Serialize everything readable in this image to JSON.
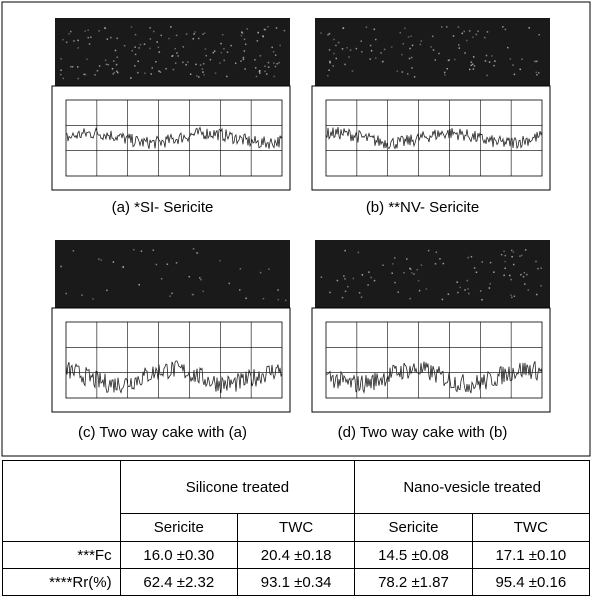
{
  "panels": [
    {
      "caption": "(a) *SI- Sericite"
    },
    {
      "caption": "(b) **NV- Sericite"
    },
    {
      "caption": "(c) Two way cake with (a)"
    },
    {
      "caption": "(d) Two way cake with (b)"
    }
  ],
  "table": {
    "header": [
      "Silicone treated",
      "Nano-vesicle treated"
    ],
    "subheader": [
      "Sericite",
      "TWC",
      "Sericite",
      "TWC"
    ],
    "rows": [
      [
        "***Fc",
        "16.0 ±0.30",
        "20.4 ±0.18",
        "14.5 ±0.08",
        "17.1 ±0.10"
      ],
      [
        "****Rr(%)",
        "62.4 ±2.32",
        "93.1 ±0.34",
        "78.2 ±1.87",
        "95.4 ±0.16"
      ]
    ]
  }
}
